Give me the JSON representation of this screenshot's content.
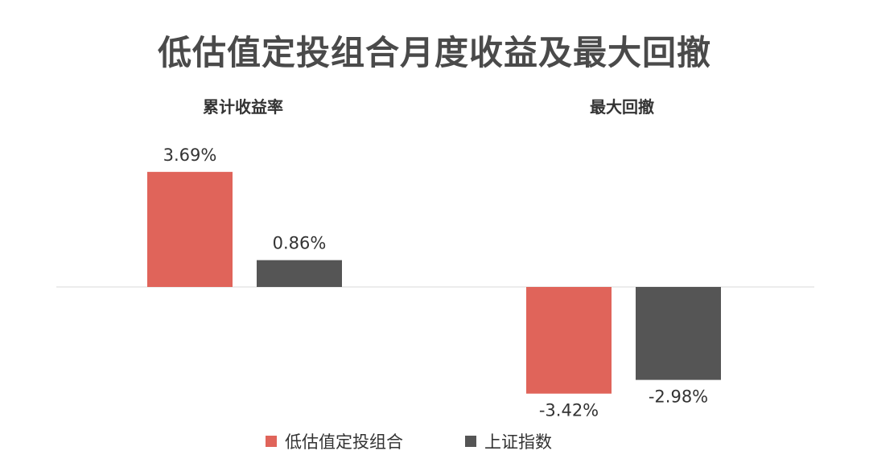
{
  "chart_data": {
    "type": "bar",
    "title": "低估值定投组合月度收益及最大回撤",
    "categories": [
      "累计收益率",
      "最大回撤"
    ],
    "series": [
      {
        "name": "低估值定投组合",
        "values": [
          3.69,
          -3.42
        ],
        "labels": [
          "3.69%",
          "-3.42%"
        ],
        "color": "#e0645a"
      },
      {
        "name": "上证指数",
        "values": [
          0.86,
          -2.98
        ],
        "labels": [
          "0.86%",
          "-2.98%"
        ],
        "color": "#555555"
      }
    ],
    "ylim": [
      -3.42,
      3.69
    ],
    "grid": false,
    "legend_position": "bottom"
  }
}
